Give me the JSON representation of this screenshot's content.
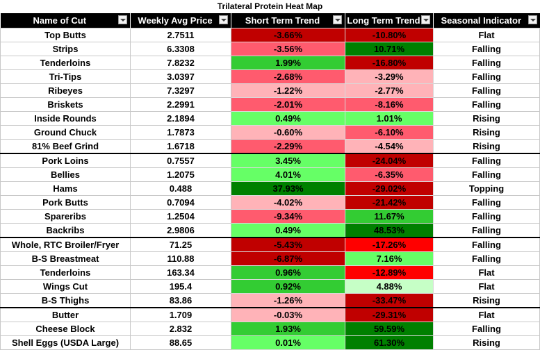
{
  "title": "Trilateral Protein Heat Map",
  "headers": [
    "Name of Cut",
    "Weekly Avg Price",
    "Short Term Trend",
    "Long Term Trend",
    "Seasonal Indicator"
  ],
  "colors": {
    "dark_red": "#c00000",
    "red": "#ff0000",
    "light_red": "#ff5b6e",
    "pink": "#ffb3b8",
    "dark_green": "#008000",
    "green": "#33cc33",
    "light_green": "#66ff66",
    "pale_green": "#c6ffc6"
  },
  "rows": [
    {
      "name": "Top Butts",
      "price": "2.7511",
      "short": "-3.66%",
      "short_color": "#c00000",
      "long": "-10.80%",
      "long_color": "#c00000",
      "season": "Flat"
    },
    {
      "name": "Strips",
      "price": "6.3308",
      "short": "-3.56%",
      "short_color": "#ff5b6e",
      "long": "10.71%",
      "long_color": "#008000",
      "season": "Falling"
    },
    {
      "name": "Tenderloins",
      "price": "7.8232",
      "short": "1.99%",
      "short_color": "#33cc33",
      "long": "-16.80%",
      "long_color": "#c00000",
      "season": "Falling"
    },
    {
      "name": "Tri-Tips",
      "price": "3.0397",
      "short": "-2.68%",
      "short_color": "#ff5b6e",
      "long": "-3.29%",
      "long_color": "#ffb3b8",
      "season": "Falling"
    },
    {
      "name": "Ribeyes",
      "price": "7.3297",
      "short": "-1.22%",
      "short_color": "#ffb3b8",
      "long": "-2.77%",
      "long_color": "#ffb3b8",
      "season": "Falling"
    },
    {
      "name": "Briskets",
      "price": "2.2991",
      "short": "-2.01%",
      "short_color": "#ff5b6e",
      "long": "-8.16%",
      "long_color": "#ff5b6e",
      "season": "Falling"
    },
    {
      "name": "Inside Rounds",
      "price": "2.1894",
      "short": "0.49%",
      "short_color": "#66ff66",
      "long": "1.01%",
      "long_color": "#66ff66",
      "season": "Rising"
    },
    {
      "name": "Ground Chuck",
      "price": "1.7873",
      "short": "-0.60%",
      "short_color": "#ffb3b8",
      "long": "-6.10%",
      "long_color": "#ff5b6e",
      "season": "Rising"
    },
    {
      "name": "81% Beef Grind",
      "price": "1.6718",
      "short": "-2.29%",
      "short_color": "#ff5b6e",
      "long": "-4.54%",
      "long_color": "#ffb3b8",
      "season": "Rising"
    },
    {
      "name": "Pork Loins",
      "price": "0.7557",
      "short": "3.45%",
      "short_color": "#66ff66",
      "long": "-24.04%",
      "long_color": "#c00000",
      "season": "Falling",
      "group_start": true
    },
    {
      "name": "Bellies",
      "price": "1.2075",
      "short": "4.01%",
      "short_color": "#66ff66",
      "long": "-6.35%",
      "long_color": "#ff5b6e",
      "season": "Falling"
    },
    {
      "name": "Hams",
      "price": "0.488",
      "short": "37.93%",
      "short_color": "#008000",
      "long": "-29.02%",
      "long_color": "#c00000",
      "season": "Topping"
    },
    {
      "name": "Pork Butts",
      "price": "0.7094",
      "short": "-4.02%",
      "short_color": "#ffb3b8",
      "long": "-21.42%",
      "long_color": "#c00000",
      "season": "Falling"
    },
    {
      "name": "Spareribs",
      "price": "1.2504",
      "short": "-9.34%",
      "short_color": "#ff5b6e",
      "long": "11.67%",
      "long_color": "#33cc33",
      "season": "Falling"
    },
    {
      "name": "Backribs",
      "price": "2.9806",
      "short": "0.49%",
      "short_color": "#66ff66",
      "long": "48.53%",
      "long_color": "#008000",
      "season": "Falling"
    },
    {
      "name": "Whole, RTC Broiler/Fryer",
      "price": "71.25",
      "short": "-5.43%",
      "short_color": "#c00000",
      "long": "-17.26%",
      "long_color": "#ff0000",
      "season": "Falling",
      "group_start": true
    },
    {
      "name": "B-S Breastmeat",
      "price": "110.88",
      "short": "-6.87%",
      "short_color": "#c00000",
      "long": "7.16%",
      "long_color": "#66ff66",
      "season": "Falling"
    },
    {
      "name": "Tenderloins",
      "price": "163.34",
      "short": "0.96%",
      "short_color": "#33cc33",
      "long": "-12.89%",
      "long_color": "#ff0000",
      "season": "Flat"
    },
    {
      "name": "Wings Cut",
      "price": "195.4",
      "short": "0.92%",
      "short_color": "#33cc33",
      "long": "4.88%",
      "long_color": "#c6ffc6",
      "season": "Flat"
    },
    {
      "name": "B-S Thighs",
      "price": "83.86",
      "short": "-1.26%",
      "short_color": "#ffb3b8",
      "long": "-33.47%",
      "long_color": "#c00000",
      "season": "Rising"
    },
    {
      "name": "Butter",
      "price": "1.709",
      "short": "-0.03%",
      "short_color": "#ffb3b8",
      "long": "-29.31%",
      "long_color": "#c00000",
      "season": "Flat",
      "group_start": true
    },
    {
      "name": "Cheese Block",
      "price": "2.832",
      "short": "1.93%",
      "short_color": "#33cc33",
      "long": "59.59%",
      "long_color": "#008000",
      "season": "Falling"
    },
    {
      "name": "Shell Eggs (USDA Large)",
      "price": "88.65",
      "short": "0.01%",
      "short_color": "#66ff66",
      "long": "61.30%",
      "long_color": "#008000",
      "season": "Rising"
    }
  ]
}
